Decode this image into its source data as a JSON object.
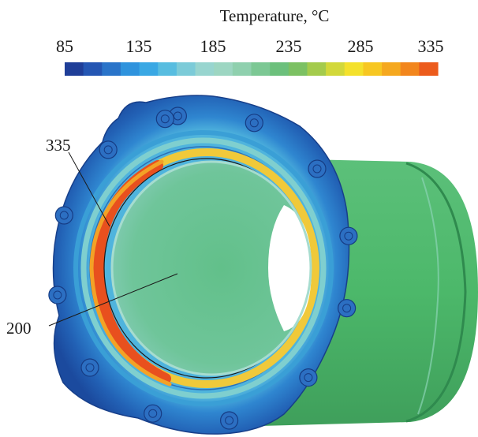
{
  "colorbar": {
    "title": "Temperature, °C",
    "tick_labels": [
      "85",
      "135",
      "185",
      "235",
      "285",
      "335"
    ],
    "colors": [
      "#1f3e98",
      "#2456b3",
      "#2a74c9",
      "#2f93dd",
      "#3aa8e4",
      "#58bde0",
      "#7ccbd8",
      "#98d5cf",
      "#9dd6c2",
      "#8fd0ae",
      "#7cc894",
      "#6cc07c",
      "#7cc163",
      "#a4cb4c",
      "#d2d83a",
      "#f4e12c",
      "#f7c722",
      "#f5a81f",
      "#f2861d",
      "#ec5b1c"
    ]
  },
  "annotations": [
    {
      "label": "335",
      "target": "hot inner ring"
    },
    {
      "label": "200",
      "target": "inner bore surface"
    }
  ],
  "palette": {
    "flange_outer": "#1c4fa6",
    "flange_mid": "#2a78cc",
    "flange_inner": "#3c9fd9",
    "ring_cool": "#7fcfcf",
    "ring_hot": "#e8501e",
    "ring_warm": "#f0b72b",
    "bore": "#5bbf8a",
    "cylinder": "#4cb86a",
    "cylinder_dark": "#3a9e58",
    "background": "#ffffff"
  }
}
